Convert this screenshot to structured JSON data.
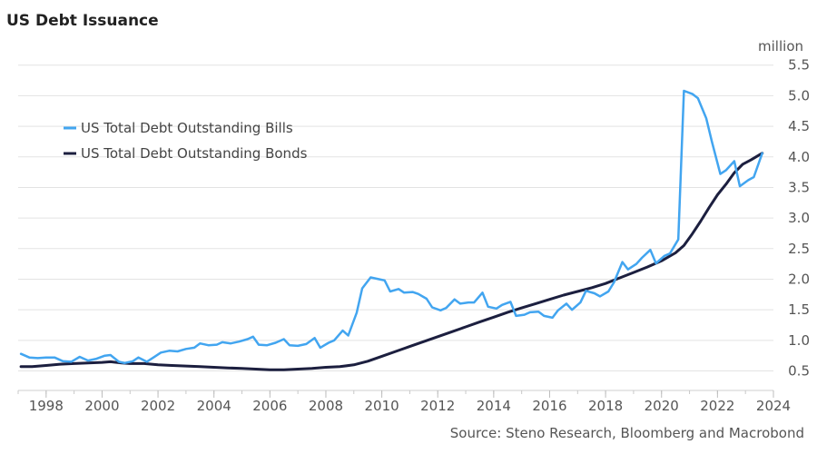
{
  "chart_data": {
    "type": "line",
    "title": "US Debt Issuance",
    "unit_label": "million",
    "source": "Source: Steno Research, Bloomberg and Macrobond",
    "xlim": [
      1997.0,
      2024.0
    ],
    "ylim": [
      0.3,
      5.6
    ],
    "x_ticks": [
      1998,
      2000,
      2002,
      2004,
      2006,
      2008,
      2010,
      2012,
      2014,
      2016,
      2018,
      2020,
      2022,
      2024
    ],
    "x_tick_labels": [
      "1998",
      "2000",
      "2002",
      "2004",
      "2006",
      "2008",
      "2010",
      "2012",
      "2014",
      "2016",
      "2018",
      "2020",
      "2022",
      "2024"
    ],
    "y_ticks": [
      0.5,
      1.0,
      1.5,
      2.0,
      2.5,
      3.0,
      3.5,
      4.0,
      4.5,
      5.0,
      5.5
    ],
    "y_tick_labels": [
      "0.5",
      "1.0",
      "1.5",
      "2.0",
      "2.5",
      "3.0",
      "3.5",
      "4.0",
      "4.5",
      "5.0",
      "5.5"
    ],
    "grid": "horizontal",
    "legend_position": "top-left",
    "series": [
      {
        "name": "US Total Debt Outstanding Bills",
        "color": "#42a5f0",
        "points": [
          [
            1997.1,
            0.78
          ],
          [
            1997.4,
            0.72
          ],
          [
            1997.7,
            0.71
          ],
          [
            1998.0,
            0.72
          ],
          [
            1998.3,
            0.72
          ],
          [
            1998.6,
            0.66
          ],
          [
            1998.9,
            0.65
          ],
          [
            1999.2,
            0.73
          ],
          [
            1999.5,
            0.67
          ],
          [
            1999.8,
            0.7
          ],
          [
            2000.1,
            0.75
          ],
          [
            2000.3,
            0.76
          ],
          [
            2000.6,
            0.65
          ],
          [
            2000.8,
            0.63
          ],
          [
            2001.1,
            0.66
          ],
          [
            2001.3,
            0.72
          ],
          [
            2001.6,
            0.65
          ],
          [
            2001.9,
            0.74
          ],
          [
            2002.1,
            0.8
          ],
          [
            2002.4,
            0.83
          ],
          [
            2002.7,
            0.82
          ],
          [
            2003.0,
            0.86
          ],
          [
            2003.3,
            0.88
          ],
          [
            2003.5,
            0.95
          ],
          [
            2003.8,
            0.92
          ],
          [
            2004.1,
            0.93
          ],
          [
            2004.3,
            0.97
          ],
          [
            2004.6,
            0.95
          ],
          [
            2004.9,
            0.98
          ],
          [
            2005.2,
            1.02
          ],
          [
            2005.4,
            1.06
          ],
          [
            2005.6,
            0.93
          ],
          [
            2005.9,
            0.92
          ],
          [
            2006.2,
            0.96
          ],
          [
            2006.5,
            1.02
          ],
          [
            2006.7,
            0.92
          ],
          [
            2007.0,
            0.91
          ],
          [
            2007.3,
            0.94
          ],
          [
            2007.6,
            1.04
          ],
          [
            2007.8,
            0.88
          ],
          [
            2008.1,
            0.96
          ],
          [
            2008.3,
            1.0
          ],
          [
            2008.6,
            1.16
          ],
          [
            2008.8,
            1.08
          ],
          [
            2009.1,
            1.45
          ],
          [
            2009.3,
            1.85
          ],
          [
            2009.6,
            2.03
          ],
          [
            2009.9,
            2.0
          ],
          [
            2010.1,
            1.98
          ],
          [
            2010.3,
            1.8
          ],
          [
            2010.6,
            1.84
          ],
          [
            2010.8,
            1.78
          ],
          [
            2011.1,
            1.79
          ],
          [
            2011.3,
            1.76
          ],
          [
            2011.6,
            1.68
          ],
          [
            2011.8,
            1.54
          ],
          [
            2012.1,
            1.49
          ],
          [
            2012.3,
            1.53
          ],
          [
            2012.6,
            1.67
          ],
          [
            2012.8,
            1.6
          ],
          [
            2013.1,
            1.62
          ],
          [
            2013.3,
            1.62
          ],
          [
            2013.6,
            1.78
          ],
          [
            2013.8,
            1.55
          ],
          [
            2014.1,
            1.52
          ],
          [
            2014.3,
            1.58
          ],
          [
            2014.6,
            1.63
          ],
          [
            2014.8,
            1.4
          ],
          [
            2015.1,
            1.42
          ],
          [
            2015.3,
            1.46
          ],
          [
            2015.6,
            1.47
          ],
          [
            2015.8,
            1.4
          ],
          [
            2016.1,
            1.37
          ],
          [
            2016.3,
            1.49
          ],
          [
            2016.6,
            1.6
          ],
          [
            2016.8,
            1.5
          ],
          [
            2017.1,
            1.62
          ],
          [
            2017.3,
            1.81
          ],
          [
            2017.6,
            1.77
          ],
          [
            2017.8,
            1.72
          ],
          [
            2018.1,
            1.8
          ],
          [
            2018.3,
            1.95
          ],
          [
            2018.6,
            2.28
          ],
          [
            2018.8,
            2.16
          ],
          [
            2019.1,
            2.25
          ],
          [
            2019.3,
            2.35
          ],
          [
            2019.6,
            2.48
          ],
          [
            2019.8,
            2.26
          ],
          [
            2020.1,
            2.38
          ],
          [
            2020.3,
            2.42
          ],
          [
            2020.6,
            2.65
          ],
          [
            2020.8,
            5.08
          ],
          [
            2021.1,
            5.03
          ],
          [
            2021.3,
            4.96
          ],
          [
            2021.6,
            4.63
          ],
          [
            2021.8,
            4.25
          ],
          [
            2022.1,
            3.72
          ],
          [
            2022.3,
            3.78
          ],
          [
            2022.6,
            3.93
          ],
          [
            2022.8,
            3.52
          ],
          [
            2023.1,
            3.62
          ],
          [
            2023.3,
            3.67
          ],
          [
            2023.6,
            4.06
          ]
        ]
      },
      {
        "name": "US Total Debt Outstanding Bonds",
        "color": "#1c1f3f",
        "points": [
          [
            1997.1,
            0.57
          ],
          [
            1997.5,
            0.57
          ],
          [
            1998.0,
            0.59
          ],
          [
            1998.5,
            0.61
          ],
          [
            1999.0,
            0.62
          ],
          [
            1999.5,
            0.63
          ],
          [
            2000.0,
            0.64
          ],
          [
            2000.3,
            0.65
          ],
          [
            2000.7,
            0.63
          ],
          [
            2001.0,
            0.62
          ],
          [
            2001.5,
            0.62
          ],
          [
            2002.0,
            0.6
          ],
          [
            2002.5,
            0.59
          ],
          [
            2003.0,
            0.58
          ],
          [
            2003.5,
            0.57
          ],
          [
            2004.0,
            0.56
          ],
          [
            2004.5,
            0.55
          ],
          [
            2005.0,
            0.54
          ],
          [
            2005.5,
            0.53
          ],
          [
            2006.0,
            0.52
          ],
          [
            2006.5,
            0.52
          ],
          [
            2007.0,
            0.53
          ],
          [
            2007.5,
            0.54
          ],
          [
            2008.0,
            0.56
          ],
          [
            2008.5,
            0.57
          ],
          [
            2009.0,
            0.6
          ],
          [
            2009.5,
            0.66
          ],
          [
            2010.0,
            0.74
          ],
          [
            2010.5,
            0.82
          ],
          [
            2011.0,
            0.9
          ],
          [
            2011.5,
            0.98
          ],
          [
            2012.0,
            1.06
          ],
          [
            2012.5,
            1.14
          ],
          [
            2013.0,
            1.22
          ],
          [
            2013.5,
            1.3
          ],
          [
            2014.0,
            1.38
          ],
          [
            2014.5,
            1.46
          ],
          [
            2015.0,
            1.53
          ],
          [
            2015.5,
            1.6
          ],
          [
            2016.0,
            1.67
          ],
          [
            2016.5,
            1.74
          ],
          [
            2017.0,
            1.8
          ],
          [
            2017.5,
            1.86
          ],
          [
            2018.0,
            1.93
          ],
          [
            2018.5,
            2.02
          ],
          [
            2019.0,
            2.11
          ],
          [
            2019.5,
            2.2
          ],
          [
            2020.0,
            2.3
          ],
          [
            2020.5,
            2.43
          ],
          [
            2020.8,
            2.55
          ],
          [
            2021.1,
            2.74
          ],
          [
            2021.4,
            2.95
          ],
          [
            2021.7,
            3.17
          ],
          [
            2022.0,
            3.38
          ],
          [
            2022.3,
            3.55
          ],
          [
            2022.6,
            3.74
          ],
          [
            2022.9,
            3.88
          ],
          [
            2023.2,
            3.95
          ],
          [
            2023.6,
            4.06
          ]
        ]
      }
    ]
  }
}
